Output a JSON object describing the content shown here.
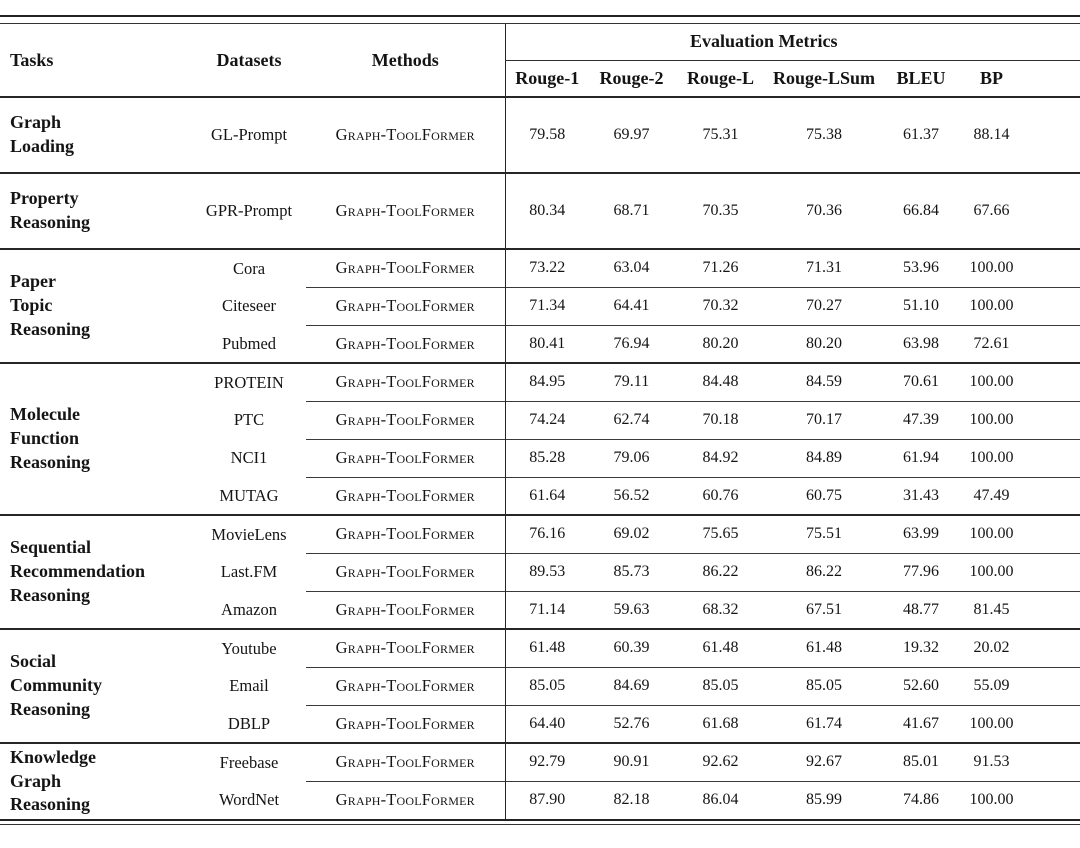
{
  "colors": {
    "background": "#ffffff",
    "text": "#141414",
    "rule": "#262626"
  },
  "table": {
    "headers": {
      "tasks": "Tasks",
      "datasets": "Datasets",
      "methods": "Methods",
      "metrics_group": "Evaluation Metrics",
      "metrics": [
        "Rouge-1",
        "Rouge-2",
        "Rouge-L",
        "Rouge-LSum",
        "BLEU",
        "BP"
      ]
    },
    "method_name": "Graph-ToolFormer",
    "sections": [
      {
        "task": "Graph\nLoading",
        "rows": [
          {
            "dataset": "GL-Prompt",
            "values": [
              "79.58",
              "69.97",
              "75.31",
              "75.38",
              "61.37",
              "88.14"
            ]
          }
        ]
      },
      {
        "task": "Property\nReasoning",
        "rows": [
          {
            "dataset": "GPR-Prompt",
            "values": [
              "80.34",
              "68.71",
              "70.35",
              "70.36",
              "66.84",
              "67.66"
            ]
          }
        ]
      },
      {
        "task": "Paper\nTopic\nReasoning",
        "rows": [
          {
            "dataset": "Cora",
            "values": [
              "73.22",
              "63.04",
              "71.26",
              "71.31",
              "53.96",
              "100.00"
            ]
          },
          {
            "dataset": "Citeseer",
            "values": [
              "71.34",
              "64.41",
              "70.32",
              "70.27",
              "51.10",
              "100.00"
            ]
          },
          {
            "dataset": "Pubmed",
            "values": [
              "80.41",
              "76.94",
              "80.20",
              "80.20",
              "63.98",
              "72.61"
            ]
          }
        ]
      },
      {
        "task": "Molecule\nFunction\nReasoning",
        "rows": [
          {
            "dataset": "PROTEIN",
            "values": [
              "84.95",
              "79.11",
              "84.48",
              "84.59",
              "70.61",
              "100.00"
            ]
          },
          {
            "dataset": "PTC",
            "values": [
              "74.24",
              "62.74",
              "70.18",
              "70.17",
              "47.39",
              "100.00"
            ]
          },
          {
            "dataset": "NCI1",
            "values": [
              "85.28",
              "79.06",
              "84.92",
              "84.89",
              "61.94",
              "100.00"
            ]
          },
          {
            "dataset": "MUTAG",
            "values": [
              "61.64",
              "56.52",
              "60.76",
              "60.75",
              "31.43",
              "47.49"
            ]
          }
        ]
      },
      {
        "task": "Sequential\nRecommendation\nReasoning",
        "rows": [
          {
            "dataset": "MovieLens",
            "values": [
              "76.16",
              "69.02",
              "75.65",
              "75.51",
              "63.99",
              "100.00"
            ]
          },
          {
            "dataset": "Last.FM",
            "values": [
              "89.53",
              "85.73",
              "86.22",
              "86.22",
              "77.96",
              "100.00"
            ]
          },
          {
            "dataset": "Amazon",
            "values": [
              "71.14",
              "59.63",
              "68.32",
              "67.51",
              "48.77",
              "81.45"
            ]
          }
        ]
      },
      {
        "task": "Social\nCommunity\nReasoning",
        "rows": [
          {
            "dataset": "Youtube",
            "values": [
              "61.48",
              "60.39",
              "61.48",
              "61.48",
              "19.32",
              "20.02"
            ]
          },
          {
            "dataset": "Email",
            "values": [
              "85.05",
              "84.69",
              "85.05",
              "85.05",
              "52.60",
              "55.09"
            ]
          },
          {
            "dataset": "DBLP",
            "values": [
              "64.40",
              "52.76",
              "61.68",
              "61.74",
              "41.67",
              "100.00"
            ]
          }
        ]
      },
      {
        "task": "Knowledge\nGraph\nReasoning",
        "rows": [
          {
            "dataset": "Freebase",
            "values": [
              "92.79",
              "90.91",
              "92.62",
              "92.67",
              "85.01",
              "91.53"
            ]
          },
          {
            "dataset": "WordNet",
            "values": [
              "87.90",
              "82.18",
              "86.04",
              "85.99",
              "74.86",
              "100.00"
            ]
          }
        ]
      }
    ]
  }
}
